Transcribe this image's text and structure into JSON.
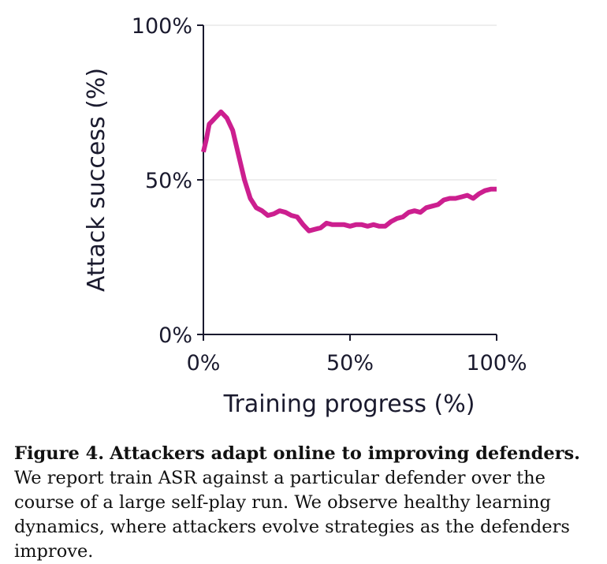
{
  "chart_data": {
    "type": "line",
    "xlabel": "Training progress (%)",
    "ylabel": "Attack success (%)",
    "xlim": [
      0,
      100
    ],
    "ylim": [
      0,
      100
    ],
    "x_ticks": [
      0,
      50,
      100
    ],
    "y_ticks": [
      0,
      50,
      100
    ],
    "x_tick_labels": [
      "0%",
      "50%",
      "100%"
    ],
    "y_tick_labels": [
      "0%",
      "50%",
      "100%"
    ],
    "grid": "horizontal",
    "line_color": "#cc1f8f",
    "series": [
      {
        "x": [
          0,
          1,
          2,
          3,
          4,
          5,
          6,
          7,
          8,
          10,
          12,
          14,
          16,
          18,
          20,
          22,
          24,
          26,
          28,
          30,
          32,
          34,
          36,
          38,
          40,
          42,
          44,
          46,
          48,
          50,
          52,
          54,
          56,
          58,
          60,
          62,
          64,
          66,
          68,
          70,
          72,
          74,
          76,
          78,
          80,
          82,
          84,
          86,
          88,
          90,
          92,
          94,
          96,
          98,
          100
        ],
        "y": [
          59,
          63,
          68,
          69,
          70,
          71,
          72,
          71,
          70,
          66,
          58,
          50,
          44,
          41,
          40,
          38.5,
          39,
          40,
          39.5,
          38.5,
          38,
          35.5,
          33.5,
          34,
          34.5,
          36,
          35.5,
          35.5,
          35.5,
          35,
          35.5,
          35.5,
          35,
          35.5,
          35,
          35,
          36.5,
          37.5,
          38,
          39.5,
          40,
          39.5,
          41,
          41.5,
          42,
          43.5,
          44,
          44,
          44.5,
          45,
          44,
          45.5,
          46.5,
          47,
          47
        ]
      }
    ]
  },
  "caption": {
    "figure_number": "Figure 4.",
    "title": "Attackers adapt online to improving defenders.",
    "body": "We report train ASR against a particular defender over the course of a large self-play run. We observe healthy learning dynamics, where attackers evolve strategies as the defenders improve."
  }
}
